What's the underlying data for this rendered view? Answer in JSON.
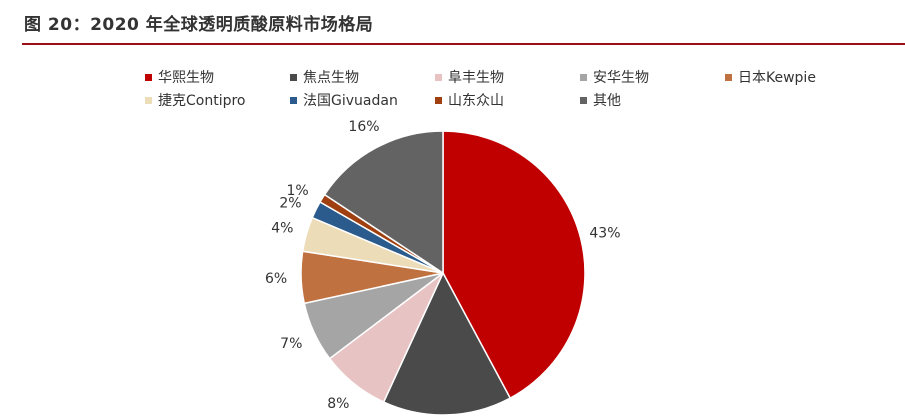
{
  "figure": {
    "title": "图 20：2020 年全球透明质酸原料市场格局"
  },
  "chart_data": {
    "type": "pie",
    "title": "",
    "start_angle_deg": 0,
    "direction": "clockwise",
    "legend_position": "top",
    "labels": [
      "华熙生物",
      "焦点生物",
      "阜丰生物",
      "安华生物",
      "日本Kewpie",
      "捷克Contipro",
      "法国Givuadan",
      "山东众山",
      "其他"
    ],
    "values": [
      43,
      15,
      8,
      7,
      6,
      4,
      2,
      1,
      16
    ],
    "value_labels": [
      "43%",
      "",
      "8%",
      "7%",
      "6%",
      "4%",
      "2%",
      "1%",
      "16%"
    ],
    "colors": [
      "#c00000",
      "#4a4a4a",
      "#e8c3c3",
      "#a5a5a5",
      "#c07140",
      "#ecdcb8",
      "#2b5a8c",
      "#a04010",
      "#636363"
    ]
  }
}
